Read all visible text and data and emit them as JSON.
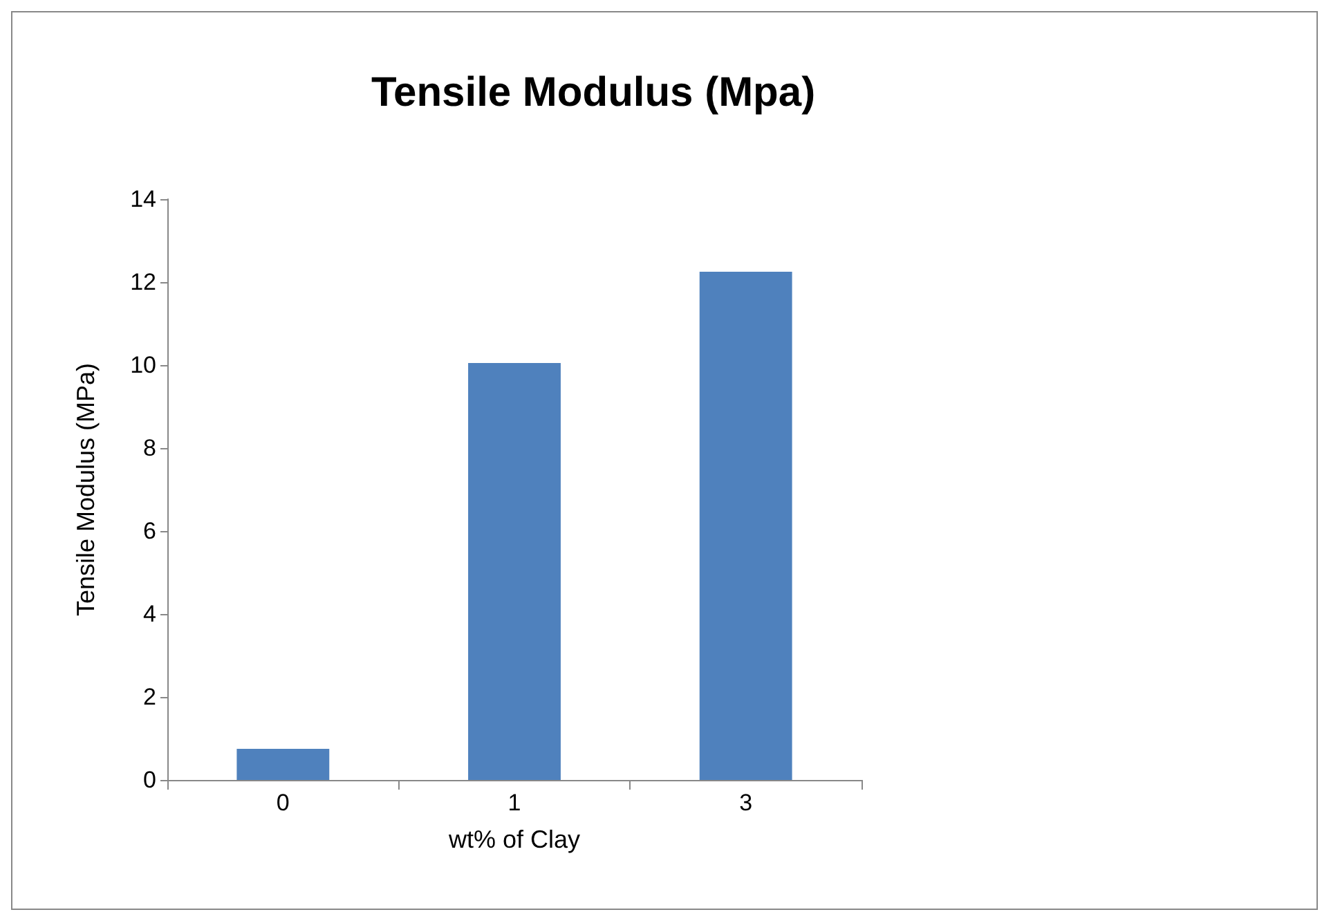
{
  "chart_data": {
    "type": "bar",
    "title": "Tensile Modulus (Mpa)",
    "xlabel": "wt% of Clay",
    "ylabel": "Tensile Modulus (MPa)",
    "categories": [
      "0",
      "1",
      "3"
    ],
    "values": [
      0.75,
      10.05,
      12.25
    ],
    "color": "#4f81bd",
    "ylim": [
      0,
      14
    ],
    "yticks": [
      0,
      2,
      4,
      6,
      8,
      10,
      12,
      14
    ],
    "grid": false
  }
}
